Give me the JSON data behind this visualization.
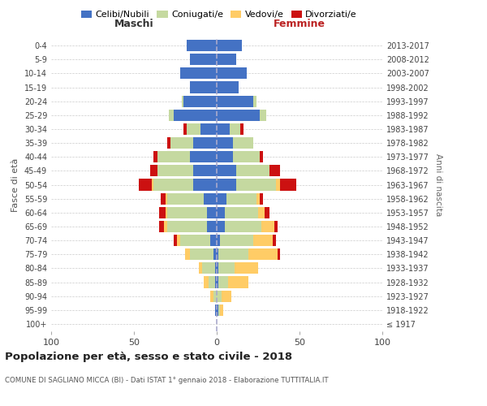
{
  "age_groups": [
    "100+",
    "95-99",
    "90-94",
    "85-89",
    "80-84",
    "75-79",
    "70-74",
    "65-69",
    "60-64",
    "55-59",
    "50-54",
    "45-49",
    "40-44",
    "35-39",
    "30-34",
    "25-29",
    "20-24",
    "15-19",
    "10-14",
    "5-9",
    "0-4"
  ],
  "birth_years": [
    "≤ 1917",
    "1918-1922",
    "1923-1927",
    "1928-1932",
    "1933-1937",
    "1938-1942",
    "1943-1947",
    "1948-1952",
    "1953-1957",
    "1958-1962",
    "1963-1967",
    "1968-1972",
    "1973-1977",
    "1978-1982",
    "1983-1987",
    "1988-1992",
    "1993-1997",
    "1998-2002",
    "2003-2007",
    "2008-2012",
    "2013-2017"
  ],
  "colors": {
    "celibe": "#4472C4",
    "coniugato": "#C5D9A0",
    "vedovo": "#FFCC66",
    "divorziato": "#CC1111"
  },
  "maschi": {
    "celibe": [
      0,
      1,
      0,
      1,
      1,
      2,
      4,
      6,
      6,
      8,
      14,
      14,
      16,
      14,
      10,
      26,
      20,
      16,
      22,
      16,
      18
    ],
    "coniugato": [
      0,
      0,
      2,
      4,
      8,
      14,
      18,
      24,
      24,
      22,
      24,
      22,
      20,
      14,
      8,
      3,
      1,
      0,
      0,
      0,
      0
    ],
    "vedovo": [
      0,
      0,
      2,
      3,
      2,
      3,
      2,
      2,
      1,
      1,
      1,
      0,
      0,
      0,
      0,
      0,
      0,
      0,
      0,
      0,
      0
    ],
    "divorziato": [
      0,
      0,
      0,
      0,
      0,
      0,
      2,
      3,
      4,
      3,
      8,
      4,
      2,
      2,
      2,
      0,
      0,
      0,
      0,
      0,
      0
    ]
  },
  "femmine": {
    "nubile": [
      0,
      1,
      0,
      1,
      1,
      1,
      2,
      5,
      5,
      6,
      12,
      12,
      10,
      10,
      8,
      26,
      22,
      13,
      18,
      12,
      15
    ],
    "coniugata": [
      0,
      1,
      3,
      6,
      10,
      18,
      20,
      22,
      20,
      18,
      24,
      20,
      16,
      12,
      6,
      4,
      2,
      0,
      0,
      0,
      0
    ],
    "vedova": [
      0,
      2,
      6,
      12,
      14,
      18,
      12,
      8,
      4,
      2,
      2,
      0,
      0,
      0,
      0,
      0,
      0,
      0,
      0,
      0,
      0
    ],
    "divorziata": [
      0,
      0,
      0,
      0,
      0,
      1,
      2,
      2,
      3,
      2,
      10,
      6,
      2,
      0,
      2,
      0,
      0,
      0,
      0,
      0,
      0
    ]
  },
  "xlim": 100,
  "title": "Popolazione per età, sesso e stato civile - 2018",
  "subtitle": "COMUNE DI SAGLIANO MICCA (BI) - Dati ISTAT 1° gennaio 2018 - Elaborazione TUTTITALIA.IT",
  "xlabel_left": "Maschi",
  "xlabel_right": "Femmine",
  "ylabel_left": "Fasce di età",
  "ylabel_right": "Anni di nascita",
  "legend_labels": [
    "Celibi/Nubili",
    "Coniugati/e",
    "Vedovi/e",
    "Divorziati/e"
  ],
  "background_color": "#FFFFFF",
  "grid_color": "#CCCCCC",
  "bar_height": 0.82
}
